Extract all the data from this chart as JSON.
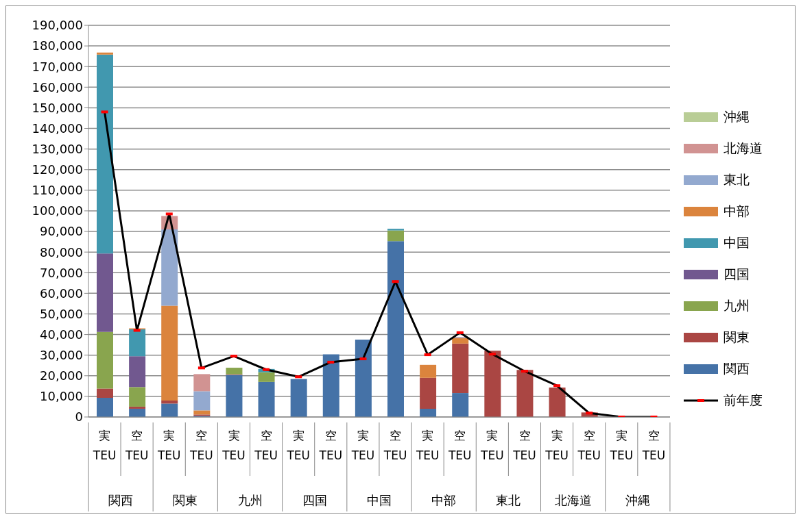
{
  "chart_data": {
    "type": "bar",
    "stacked": true,
    "categories": [
      "実 TEU",
      "空 TEU",
      "実 TEU",
      "空 TEU",
      "実 TEU",
      "空 TEU",
      "実 TEU",
      "空 TEU",
      "実 TEU",
      "空 TEU",
      "実 TEU",
      "空 TEU",
      "実 TEU",
      "空 TEU",
      "実 TEU",
      "空 TEU",
      "実 TEU",
      "空 TEU"
    ],
    "annotations": [
      "関西",
      "関東",
      "九州",
      "四国",
      "中国",
      "中部",
      "東北",
      "北海道",
      "沖縄"
    ],
    "series": [
      {
        "name": "関西",
        "color": "#4572a7",
        "values": [
          9300,
          4000,
          6500,
          500,
          20400,
          17000,
          18400,
          30400,
          37500,
          85300,
          4000,
          11600,
          0,
          0,
          0,
          0,
          null,
          null
        ]
      },
      {
        "name": "関東",
        "color": "#aa4643",
        "values": [
          4500,
          1000,
          1500,
          700,
          300,
          0,
          0,
          0,
          0,
          0,
          15000,
          24000,
          32100,
          22800,
          14300,
          2200,
          null,
          null
        ]
      },
      {
        "name": "九州",
        "color": "#89a54e",
        "values": [
          27500,
          9500,
          0,
          0,
          3200,
          4700,
          0,
          0,
          0,
          5200,
          0,
          0,
          0,
          0,
          0,
          0,
          null,
          null
        ]
      },
      {
        "name": "四国",
        "color": "#71588f",
        "values": [
          38000,
          15000,
          0,
          0,
          0,
          0,
          0,
          0,
          0,
          0,
          0,
          0,
          0,
          0,
          0,
          0,
          null,
          null
        ]
      },
      {
        "name": "中国",
        "color": "#4198af",
        "values": [
          96500,
          13000,
          0,
          0,
          0,
          1600,
          0,
          0,
          0,
          800,
          0,
          0,
          0,
          0,
          0,
          0,
          null,
          null
        ]
      },
      {
        "name": "中部",
        "color": "#db843d",
        "values": [
          1000,
          500,
          46000,
          2000,
          0,
          0,
          0,
          0,
          0,
          0,
          6300,
          2600,
          0,
          0,
          0,
          0,
          null,
          null
        ]
      },
      {
        "name": "東北",
        "color": "#93a9cf",
        "values": [
          0,
          0,
          37000,
          9300,
          0,
          0,
          0,
          0,
          0,
          0,
          0,
          300,
          0,
          0,
          0,
          0,
          null,
          null
        ]
      },
      {
        "name": "北海道",
        "color": "#d19392",
        "values": [
          0,
          0,
          6500,
          8300,
          0,
          0,
          0,
          0,
          0,
          0,
          0,
          300,
          0,
          0,
          0,
          0,
          null,
          null
        ]
      },
      {
        "name": "沖縄",
        "color": "#b9cd96",
        "values": [
          0,
          0,
          0,
          0,
          0,
          0,
          0,
          0,
          0,
          0,
          0,
          0,
          0,
          0,
          0,
          0,
          null,
          null
        ]
      },
      {
        "name": "前年度",
        "type": "line",
        "color": "#000000",
        "marker": "square",
        "values": [
          148000,
          42000,
          98500,
          23800,
          29500,
          23000,
          19500,
          26600,
          28200,
          65700,
          30200,
          40900,
          30500,
          22200,
          15200,
          1900,
          0,
          0
        ]
      }
    ],
    "ylim": [
      0,
      190000
    ],
    "yticks": [
      0,
      {
        "value": 10000,
        "label": "10,000"
      },
      {
        "value": 20000,
        "label": "20,000"
      },
      {
        "value": 30000,
        "label": "30,000"
      },
      {
        "value": 40000,
        "label": "40,000"
      },
      {
        "value": 50000,
        "label": "50,000"
      },
      {
        "value": 60000,
        "label": "60,000"
      },
      {
        "value": 70000,
        "label": "70,000"
      },
      {
        "value": 80000,
        "label": "80,000"
      },
      {
        "value": 90000,
        "label": "90,000"
      },
      {
        "value": 100000,
        "label": "100,000"
      },
      {
        "value": 110000,
        "label": "110,000"
      },
      {
        "value": 120000,
        "label": "120,000"
      },
      {
        "value": 130000,
        "label": "130,000"
      },
      {
        "value": 140000,
        "label": "140,000"
      },
      {
        "value": 150000,
        "label": "150,000"
      },
      {
        "value": 160000,
        "label": "160,000"
      },
      {
        "value": 170000,
        "label": "170,000"
      },
      {
        "value": 180000,
        "label": "180,000"
      },
      {
        "value": 190000,
        "label": "190,000"
      }
    ],
    "grid": "y",
    "legend": "right"
  }
}
